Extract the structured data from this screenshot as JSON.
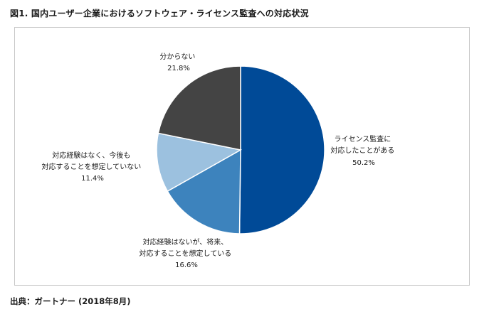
{
  "title": "図1. 国内ユーザー企業におけるソフトウェア・ライセンス監査への対応状況",
  "source": "出典：ガートナー (2018年8月)",
  "chart_data": {
    "type": "pie",
    "title": "図1. 国内ユーザー企業におけるソフトウェア・ライセンス監査への対応状況",
    "start_angle_deg": 0,
    "direction": "clockwise",
    "slices": [
      {
        "label_lines": [
          "ライセンス監査に",
          "対応したことがある"
        ],
        "value": 50.2,
        "value_label": "50.2%",
        "color": "#004a97"
      },
      {
        "label_lines": [
          "対応経験はないが、将来、",
          "対応することを想定している"
        ],
        "value": 16.6,
        "value_label": "16.6%",
        "color": "#3d83bd"
      },
      {
        "label_lines": [
          "対応経験はなく、今後も",
          "対応することを想定していない"
        ],
        "value": 11.4,
        "value_label": "11.4%",
        "color": "#9cc1df"
      },
      {
        "label_lines": [
          "分からない"
        ],
        "value": 21.8,
        "value_label": "21.8%",
        "color": "#444444"
      }
    ]
  }
}
